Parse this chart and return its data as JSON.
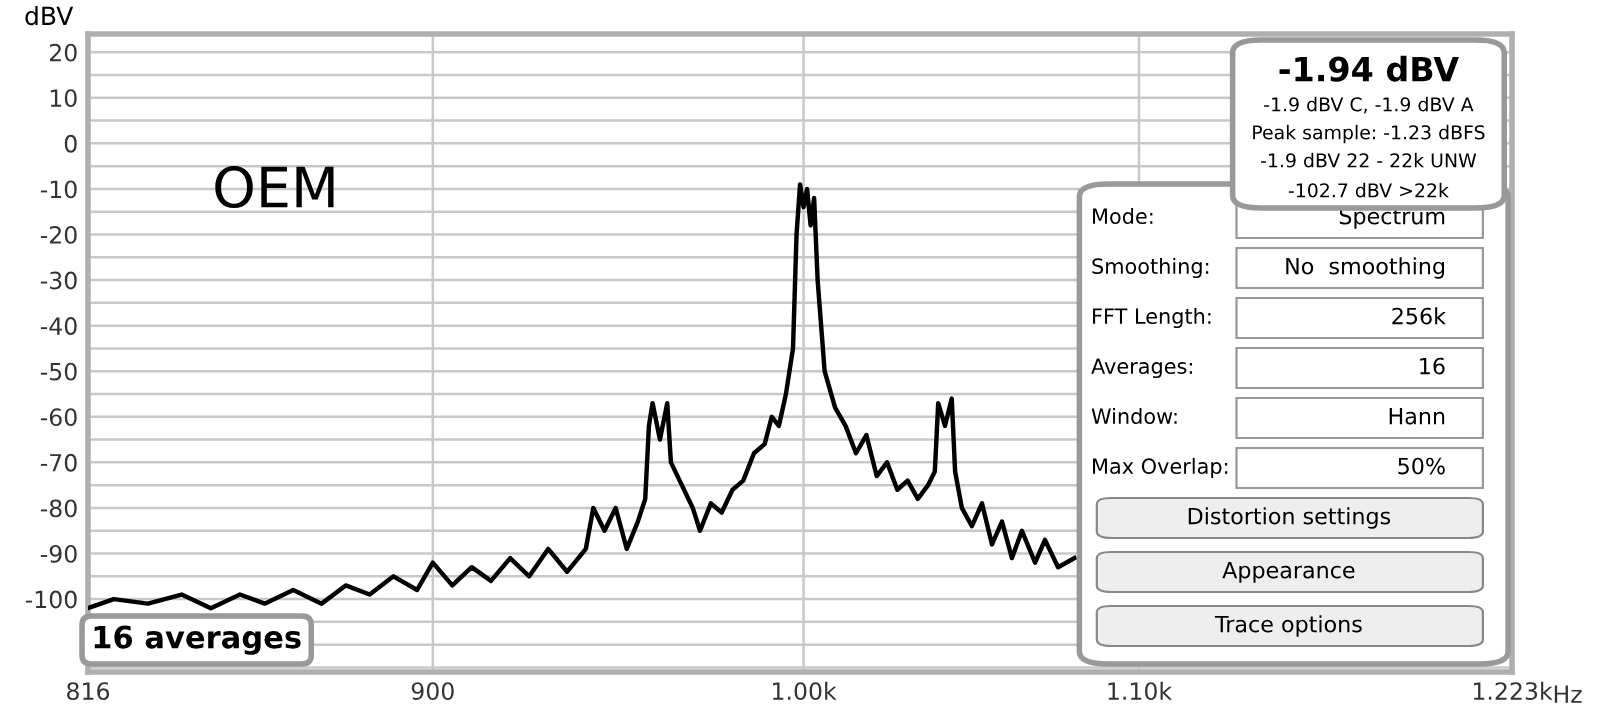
{
  "chart_data": {
    "type": "line",
    "ylabel": "dBV",
    "x": [
      816,
      822,
      830,
      838,
      845,
      852,
      858,
      865,
      872,
      878,
      884,
      890,
      896,
      900,
      905,
      910,
      915,
      920,
      925,
      930,
      935,
      938,
      940,
      942,
      945,
      948,
      951,
      954,
      956,
      957,
      958,
      960,
      962,
      963,
      966,
      969,
      971,
      974,
      977,
      980,
      983,
      986,
      989,
      991,
      993,
      995,
      997,
      998,
      999,
      1000,
      1001,
      1002,
      1003,
      1004,
      1006,
      1009,
      1012,
      1015,
      1018,
      1021,
      1024,
      1027,
      1030,
      1033,
      1036,
      1038,
      1039,
      1041,
      1043,
      1044,
      1046,
      1049,
      1052,
      1055,
      1058,
      1061,
      1064,
      1068,
      1071,
      1075,
      1080
    ],
    "series": [
      {
        "color": "#000000",
        "values": [
          -102,
          -100,
          -101,
          -99,
          -102,
          -99,
          -101,
          -98,
          -101,
          -97,
          -99,
          -95,
          -98,
          -92,
          -97,
          -93,
          -96,
          -91,
          -95,
          -89,
          -94,
          -91,
          -89,
          -80,
          -85,
          -80,
          -89,
          -83,
          -78,
          -62,
          -57,
          -65,
          -57,
          -70,
          -75,
          -80,
          -85,
          -79,
          -81,
          -76,
          -74,
          -68,
          -66,
          -60,
          -62,
          -55,
          -45,
          -20,
          -9,
          -14,
          -10,
          -18,
          -12,
          -30,
          -50,
          -58,
          -62,
          -68,
          -64,
          -73,
          -70,
          -76,
          -74,
          -78,
          -75,
          -72,
          -57,
          -62,
          -56,
          -72,
          -80,
          -84,
          -79,
          -88,
          -83,
          -91,
          -85,
          -92,
          -87,
          -93,
          -91
        ]
      }
    ],
    "log": "x",
    "xlim": [
      816,
      1223
    ],
    "ylim": [
      -116,
      24
    ],
    "xticks": [
      816,
      900,
      {
        "value": 1000,
        "label": "1.00k"
      },
      {
        "value": 1100,
        "label": "1.10k"
      },
      {
        "value": 1223,
        "label": "1.223k"
      }
    ],
    "xlabel": "Hz",
    "yticks": [
      {
        "value": -115,
        "label": null
      },
      {
        "value": -110,
        "label": null
      },
      {
        "value": -105,
        "label": null
      },
      -100,
      {
        "value": -95,
        "label": null
      },
      -90,
      {
        "value": -85,
        "label": null
      },
      -80,
      {
        "value": -75,
        "label": null
      },
      -70,
      {
        "value": -65,
        "label": null
      },
      -60,
      {
        "value": -55,
        "label": null
      },
      -50,
      {
        "value": -45,
        "label": null
      },
      -40,
      {
        "value": -35,
        "label": null
      },
      -30,
      {
        "value": -25,
        "label": null
      },
      -20,
      {
        "value": -15,
        "label": null
      },
      -10,
      {
        "value": -5,
        "label": null
      },
      0,
      {
        "value": 5,
        "label": null
      },
      10,
      {
        "value": 15,
        "label": null
      },
      20
    ],
    "grid": true,
    "marker": "none",
    "line_style": "solid",
    "annotations": [
      "OEM",
      "16 averages",
      "-1.94 dBV",
      "-1.9 dBV C, -1.9 dBV A",
      "Peak sample: -1.23 dBFS",
      "-1.9 dBV 22 - 22k UNW",
      "-102.7 dBV >22k",
      "Mode:",
      "Spectrum",
      "Smoothing:",
      "No  smoothing",
      "FFT Length:",
      "256k",
      "Averages:",
      "16",
      "Window:",
      "Hann",
      "Max Overlap:",
      "50%",
      "Distortion settings",
      "Appearance",
      "Trace options"
    ]
  }
}
